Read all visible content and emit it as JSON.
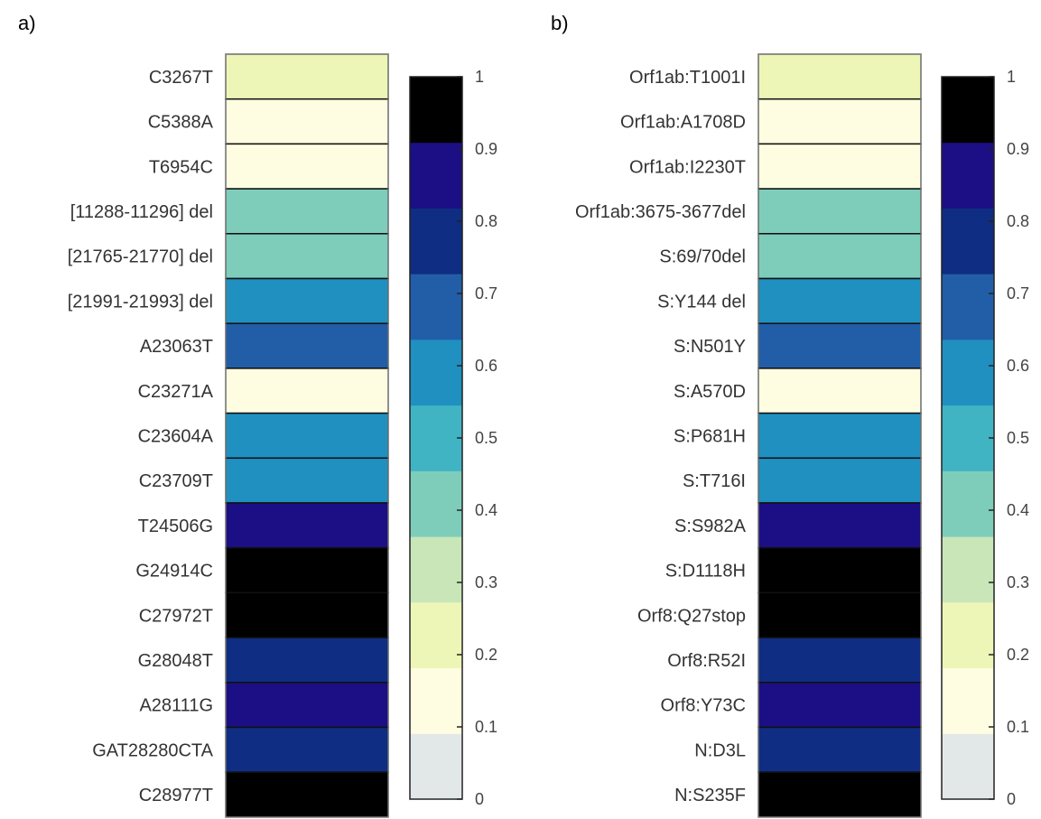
{
  "chart_data": [
    {
      "type": "heatmap",
      "panel_label": "a)",
      "rows": [
        "C3267T",
        "C5388A",
        "T6954C",
        "[11288-11296] del",
        "[21765-21770] del",
        "[21991-21993] del",
        "A23063T",
        "C23271A",
        "C23604A",
        "C23709T",
        "T24506G",
        "G24914C",
        "C27972T",
        "G28048T",
        "A28111G",
        "GAT28280CTA",
        "C28977T"
      ],
      "values": [
        0.15,
        0.05,
        0.05,
        0.35,
        0.35,
        0.55,
        0.65,
        0.05,
        0.55,
        0.55,
        0.85,
        0.95,
        0.95,
        0.75,
        0.85,
        0.8,
        0.95
      ],
      "colorbar": {
        "range": [
          0,
          1
        ],
        "ticks": [
          "0",
          "0.1",
          "0.2",
          "0.3",
          "0.4",
          "0.5",
          "0.6",
          "0.7",
          "0.8",
          "0.9",
          "1"
        ]
      }
    },
    {
      "type": "heatmap",
      "panel_label": "b)",
      "rows": [
        "Orf1ab:T1001I",
        "Orf1ab:A1708D",
        "Orf1ab:I2230T",
        "Orf1ab:3675-3677del",
        "S:69/70del",
        "S:Y144 del",
        "S:N501Y",
        "S:A570D",
        "S:P681H",
        "S:T716I",
        "S:S982A",
        "S:D1118H",
        "Orf8:Q27stop",
        "Orf8:R52I",
        "Orf8:Y73C",
        "N:D3L",
        "N:S235F"
      ],
      "values": [
        0.15,
        0.05,
        0.05,
        0.35,
        0.35,
        0.55,
        0.65,
        0.05,
        0.55,
        0.55,
        0.85,
        0.95,
        0.95,
        0.75,
        0.85,
        0.8,
        0.95
      ],
      "colorbar": {
        "range": [
          0,
          1
        ],
        "ticks": [
          "0",
          "0.1",
          "0.2",
          "0.3",
          "0.4",
          "0.5",
          "0.6",
          "0.7",
          "0.8",
          "0.9",
          "1"
        ]
      }
    }
  ],
  "colormap": [
    "#e2e8e8",
    "#fefde1",
    "#edf6b6",
    "#c8e6b8",
    "#7ecdbb",
    "#41b4c4",
    "#1f90c0",
    "#225ea8",
    "#0f2d82",
    "#1c0f86",
    "#000000"
  ]
}
